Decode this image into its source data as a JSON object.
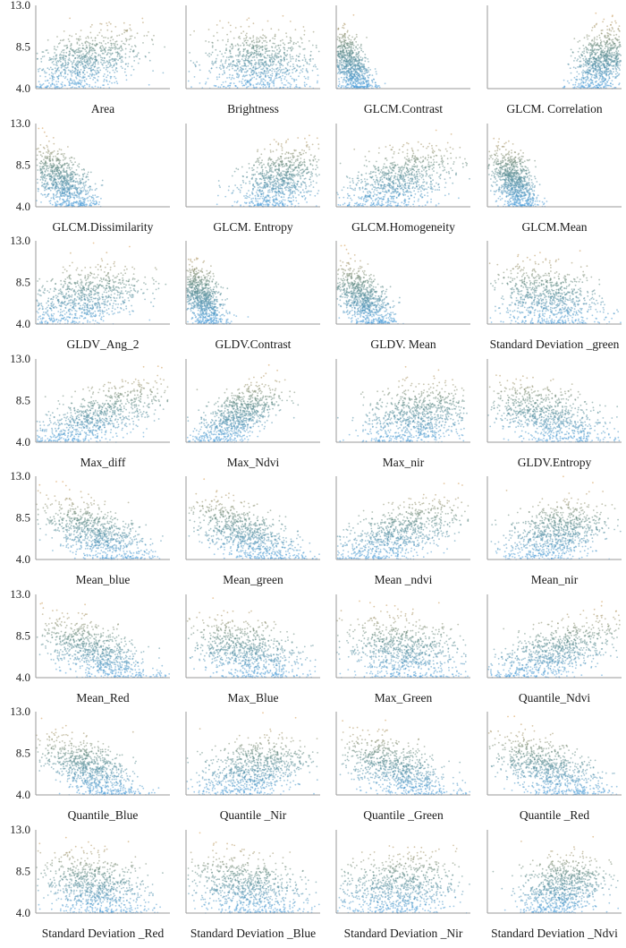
{
  "chart_data": {
    "type": "scatter",
    "layout": "grid 8 rows x 4 columns",
    "y_ticks": [
      "13.0",
      "8.5",
      "4.0"
    ],
    "y_tick_values": [
      13.0,
      8.5,
      4.0
    ],
    "ylim": [
      4.0,
      13.0
    ],
    "color_scale": {
      "low": "#4a9fe0",
      "mid": "#5f8a84",
      "high": "#d99a4c"
    },
    "axis_color": "#9a9a9a",
    "panels": [
      {
        "label": "Area",
        "trend": "positive",
        "cx": 0.35,
        "sx": 0.22,
        "corr": 0.45,
        "n": 900
      },
      {
        "label": "Brightness",
        "trend": "none",
        "cx": 0.55,
        "sx": 0.2,
        "corr": -0.05,
        "n": 900
      },
      {
        "label": "GLCM.Contrast",
        "trend": "negative",
        "cx": 0.1,
        "sx": 0.08,
        "corr": -0.5,
        "n": 900
      },
      {
        "label": "GLCM. Correlation",
        "trend": "positive",
        "cx": 0.85,
        "sx": 0.1,
        "corr": 0.3,
        "n": 900
      },
      {
        "label": "GLCM.Dissimilarity",
        "trend": "negative",
        "cx": 0.2,
        "sx": 0.12,
        "corr": -0.55,
        "n": 900
      },
      {
        "label": "GLCM. Entropy",
        "trend": "positive",
        "cx": 0.7,
        "sx": 0.15,
        "corr": 0.35,
        "n": 900
      },
      {
        "label": "GLCM.Homogeneity",
        "trend": "positive",
        "cx": 0.45,
        "sx": 0.2,
        "corr": 0.45,
        "n": 900
      },
      {
        "label": "GLCM.Mean",
        "trend": "negative",
        "cx": 0.2,
        "sx": 0.08,
        "corr": -0.45,
        "n": 900
      },
      {
        "label": "GLDV_Ang_2",
        "trend": "positive",
        "cx": 0.35,
        "sx": 0.22,
        "corr": 0.45,
        "n": 900
      },
      {
        "label": "GLDV.Contrast",
        "trend": "negative",
        "cx": 0.12,
        "sx": 0.08,
        "corr": -0.5,
        "n": 900
      },
      {
        "label": "GLDV. Mean",
        "trend": "negative",
        "cx": 0.2,
        "sx": 0.11,
        "corr": -0.55,
        "n": 900
      },
      {
        "label": "Standard Deviation _green",
        "trend": "negative",
        "cx": 0.45,
        "sx": 0.2,
        "corr": -0.25,
        "n": 900
      },
      {
        "label": "Max_diff",
        "trend": "positive",
        "cx": 0.45,
        "sx": 0.24,
        "corr": 0.65,
        "n": 900
      },
      {
        "label": "Max_Ndvi",
        "trend": "positive",
        "cx": 0.38,
        "sx": 0.15,
        "corr": 0.6,
        "n": 900
      },
      {
        "label": "Max_nir",
        "trend": "positive",
        "cx": 0.6,
        "sx": 0.2,
        "corr": 0.3,
        "n": 900
      },
      {
        "label": "GLDV.Entropy",
        "trend": "negative",
        "cx": 0.45,
        "sx": 0.22,
        "corr": -0.5,
        "n": 900
      },
      {
        "label": "Mean_blue",
        "trend": "negative",
        "cx": 0.45,
        "sx": 0.2,
        "corr": -0.6,
        "n": 900
      },
      {
        "label": "Mean_green",
        "trend": "negative",
        "cx": 0.45,
        "sx": 0.2,
        "corr": -0.6,
        "n": 900
      },
      {
        "label": "Mean _ndvi",
        "trend": "positive",
        "cx": 0.45,
        "sx": 0.24,
        "corr": 0.6,
        "n": 900
      },
      {
        "label": "Mean_nir",
        "trend": "positive",
        "cx": 0.5,
        "sx": 0.18,
        "corr": 0.35,
        "n": 900
      },
      {
        "label": "Mean_Red",
        "trend": "negative",
        "cx": 0.45,
        "sx": 0.2,
        "corr": -0.6,
        "n": 900
      },
      {
        "label": "Max_Blue",
        "trend": "negative",
        "cx": 0.45,
        "sx": 0.2,
        "corr": -0.35,
        "n": 900
      },
      {
        "label": "Max_Green",
        "trend": "negative",
        "cx": 0.5,
        "sx": 0.22,
        "corr": -0.2,
        "n": 900
      },
      {
        "label": "Quantile_Ndvi",
        "trend": "positive",
        "cx": 0.5,
        "sx": 0.24,
        "corr": 0.6,
        "n": 900
      },
      {
        "label": "Quantile_Blue",
        "trend": "negative",
        "cx": 0.4,
        "sx": 0.17,
        "corr": -0.6,
        "n": 900
      },
      {
        "label": "Quantile _Nir",
        "trend": "positive",
        "cx": 0.5,
        "sx": 0.2,
        "corr": 0.4,
        "n": 900
      },
      {
        "label": "Quantile _Green",
        "trend": "negative",
        "cx": 0.45,
        "sx": 0.2,
        "corr": -0.55,
        "n": 900
      },
      {
        "label": "Quantile _Red",
        "trend": "negative",
        "cx": 0.45,
        "sx": 0.2,
        "corr": -0.55,
        "n": 900
      },
      {
        "label": "Standard Deviation _Red",
        "trend": "negative",
        "cx": 0.45,
        "sx": 0.2,
        "corr": -0.3,
        "n": 900
      },
      {
        "label": "Standard Deviation _Blue",
        "trend": "negative",
        "cx": 0.45,
        "sx": 0.22,
        "corr": -0.3,
        "n": 900
      },
      {
        "label": "Standard Deviation _Nir",
        "trend": "positive",
        "cx": 0.45,
        "sx": 0.22,
        "corr": 0.1,
        "n": 900
      },
      {
        "label": "Standard Deviation _Ndvi",
        "trend": "positive",
        "cx": 0.55,
        "sx": 0.15,
        "corr": 0.3,
        "n": 900
      }
    ]
  }
}
